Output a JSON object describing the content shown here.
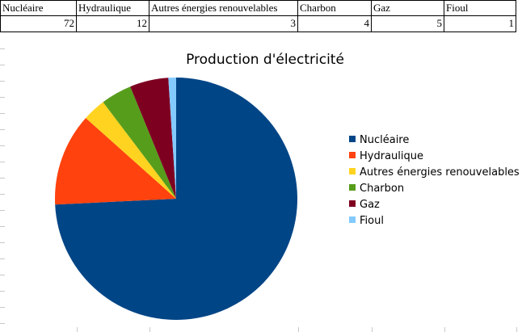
{
  "table": {
    "headers": [
      "Nucléaire",
      "Hydraulique",
      "Autres énergies renouvelables",
      "Charbon",
      "Gaz",
      "Fioul"
    ],
    "values": [
      "72",
      "12",
      "3",
      "4",
      "5",
      "1"
    ]
  },
  "chart_data": {
    "type": "pie",
    "title": "Production d'électricité",
    "categories": [
      "Nucléaire",
      "Hydraulique",
      "Autres énergies renouvelables",
      "Charbon",
      "Gaz",
      "Fioul"
    ],
    "values": [
      72,
      12,
      3,
      4,
      5,
      1
    ],
    "colors": [
      "#004586",
      "#ff420e",
      "#ffd320",
      "#579d1c",
      "#7e0021",
      "#83caff"
    ],
    "legend": "right",
    "start_angle_deg": 90,
    "direction": "clockwise"
  }
}
